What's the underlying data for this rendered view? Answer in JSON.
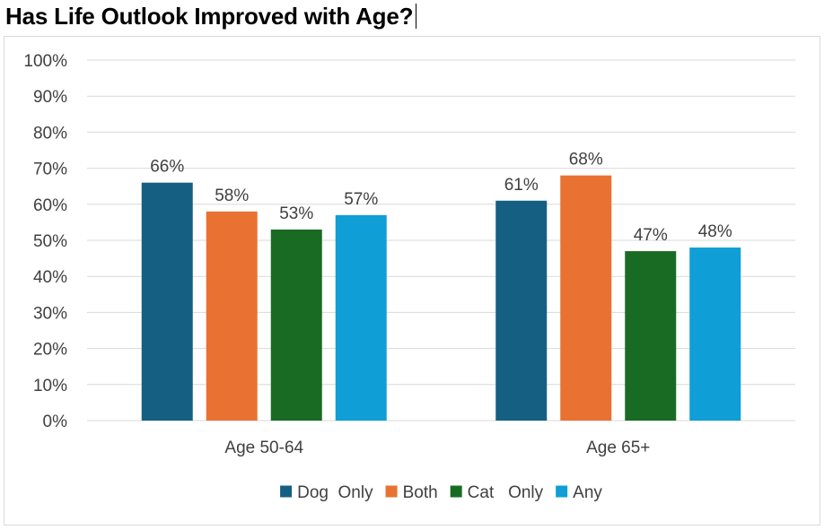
{
  "chart_data": {
    "type": "bar",
    "title": "Has Life Outlook Improved with Age?",
    "categories": [
      "Age 50-64",
      "Age 65+"
    ],
    "series": [
      {
        "name": "Dog  Only",
        "values": [
          66,
          61
        ],
        "labels": [
          "66%",
          "61%"
        ],
        "color": "#156082"
      },
      {
        "name": "Both",
        "values": [
          58,
          68
        ],
        "labels": [
          "58%",
          "68%"
        ],
        "color": "#E97132"
      },
      {
        "name": "Cat   Only",
        "values": [
          53,
          47
        ],
        "labels": [
          "53%",
          "47%"
        ],
        "color": "#196B24"
      },
      {
        "name": "Any",
        "values": [
          57,
          48
        ],
        "labels": [
          "57%",
          "48%"
        ],
        "color": "#0F9ED5"
      }
    ],
    "ylim": [
      0,
      100
    ],
    "yticks": [
      0,
      10,
      20,
      30,
      40,
      50,
      60,
      70,
      80,
      90,
      100
    ],
    "ytick_labels": [
      "0%",
      "10%",
      "20%",
      "30%",
      "40%",
      "50%",
      "60%",
      "70%",
      "80%",
      "90%",
      "100%"
    ],
    "xlabel": "",
    "ylabel": "",
    "grid": true,
    "legend_position": "bottom",
    "gridline_color": "#d9d9d9"
  }
}
